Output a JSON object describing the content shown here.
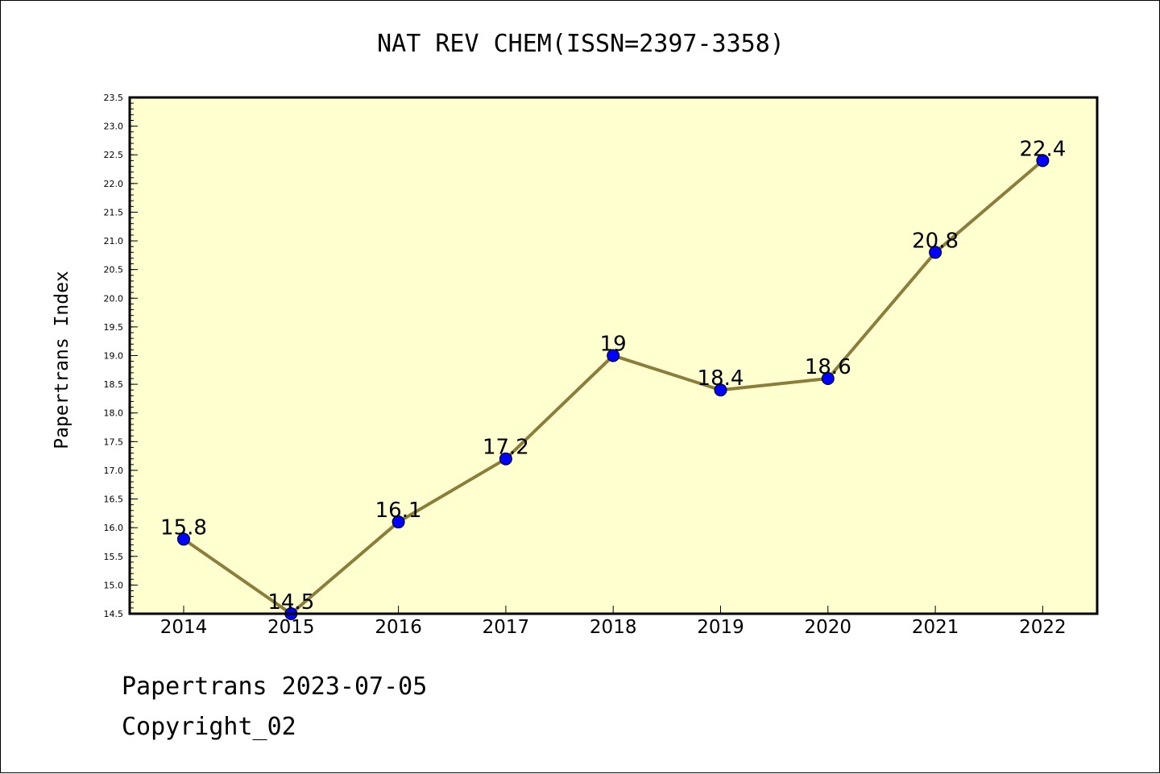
{
  "chart_data": {
    "type": "line",
    "title": "NAT REV CHEM(ISSN=2397-3358)",
    "xlabel": "",
    "ylabel": "Papertrans Index",
    "categories": [
      "2014",
      "2015",
      "2016",
      "2017",
      "2018",
      "2019",
      "2020",
      "2021",
      "2022"
    ],
    "values": [
      15.8,
      14.5,
      16.1,
      17.2,
      19,
      18.4,
      18.6,
      20.8,
      22.4
    ],
    "data_labels": [
      "15.8",
      "14.5",
      "16.1",
      "17.2",
      "19",
      "18.4",
      "18.6",
      "20.8",
      "22.4"
    ],
    "ylim": [
      14.5,
      23.5
    ],
    "y_ticks": [
      "14.5",
      "15.0",
      "15.5",
      "16.0",
      "16.5",
      "17.0",
      "17.5",
      "18.0",
      "18.5",
      "19.0",
      "19.5",
      "20.0",
      "20.5",
      "21.0",
      "21.5",
      "22.0",
      "22.5",
      "23.0",
      "23.5"
    ],
    "grid": false,
    "legend": "none",
    "colors": {
      "plot_background": "#ffffd0",
      "line": "#8b7d3a",
      "marker": "#0000ff"
    }
  },
  "footer": {
    "line1": "Papertrans 2023-07-05",
    "line2": "Copyright_02"
  }
}
